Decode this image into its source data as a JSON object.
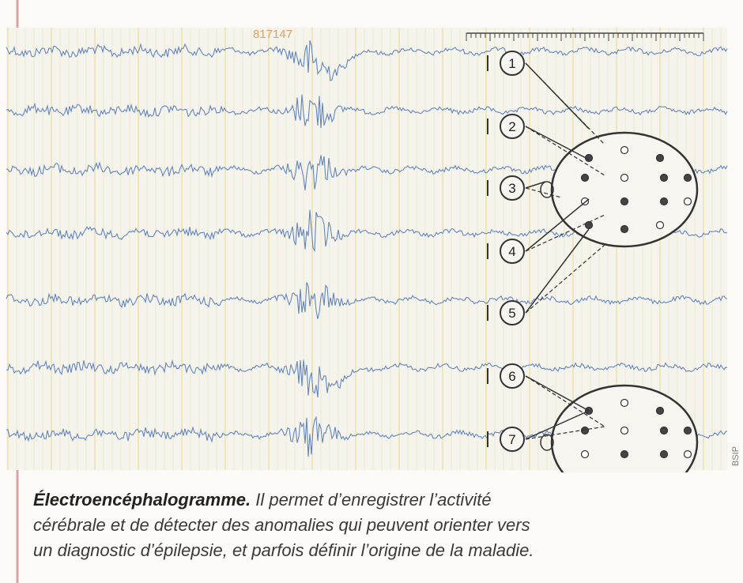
{
  "stamp": "817147",
  "electrodes": [
    "1",
    "2",
    "3",
    "4",
    "5",
    "6",
    "7"
  ],
  "credit": "BSIP",
  "caption": {
    "title": "Électroencéphalogramme.",
    "lines": [
      " Il permet d’enregistrer l’activité",
      "cérébrale et de détecter des anomalies qui peuvent orienter vers",
      "un diagnostic d’épilepsie, et parfois définir l’origine de la maladie."
    ]
  }
}
